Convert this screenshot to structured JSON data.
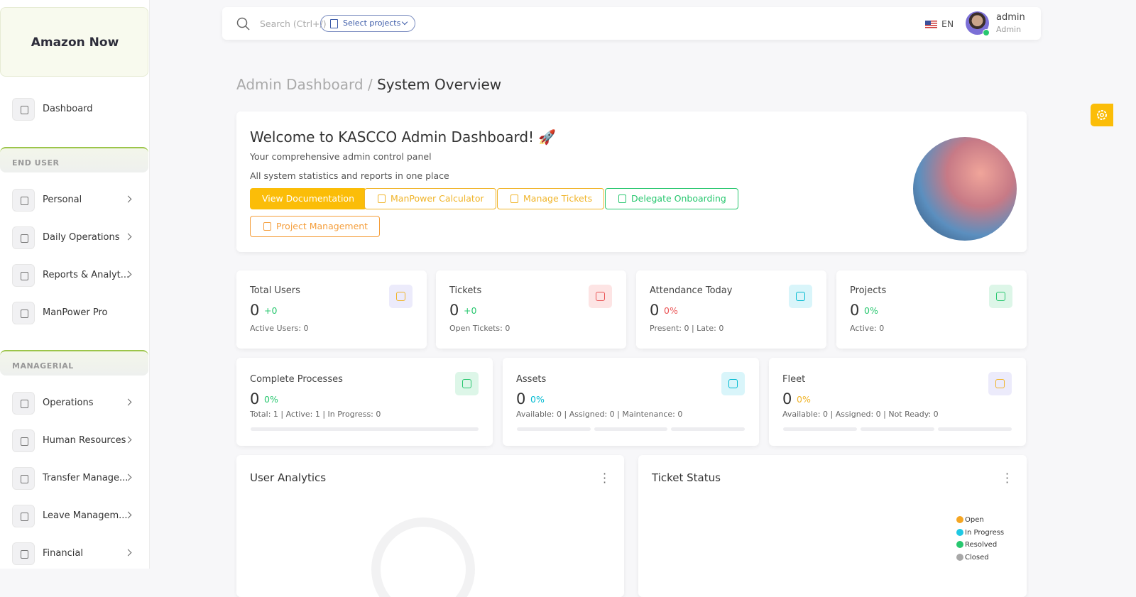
{
  "sidebar": {
    "brand": "Amazon Now",
    "items": [
      {
        "label": "Dashboard"
      }
    ],
    "sections": [
      {
        "title": "END USER",
        "items": [
          {
            "label": "Personal",
            "has_submenu": true
          },
          {
            "label": "Daily Operations",
            "has_submenu": true
          },
          {
            "label": "Reports & Analyt...",
            "has_submenu": true
          },
          {
            "label": "ManPower Pro",
            "has_submenu": false
          }
        ]
      },
      {
        "title": "MANAGERIAL",
        "items": [
          {
            "label": "Operations",
            "has_submenu": true
          },
          {
            "label": "Human Resources",
            "has_submenu": true
          },
          {
            "label": "Transfer Manage...",
            "has_submenu": true
          },
          {
            "label": "Leave Managem...",
            "has_submenu": true
          },
          {
            "label": "Financial",
            "has_submenu": true
          }
        ]
      }
    ]
  },
  "topbar": {
    "search_placeholder": "Search (Ctrl+/)",
    "project_select": "Select projects",
    "language": "EN",
    "user": {
      "name": "admin",
      "role": "Admin"
    }
  },
  "breadcrumb": {
    "parent": "Admin Dashboard /",
    "current": "System Overview"
  },
  "welcome": {
    "title": "Welcome to KASCCO Admin Dashboard! 🚀",
    "lines": [
      "Your comprehensive admin control panel",
      "All system statistics and reports in one place"
    ],
    "buttons": [
      {
        "label": "View Documentation",
        "style": "filled",
        "color": "#fbbd08"
      },
      {
        "label": "ManPower Calculator",
        "style": "outline",
        "color": "#f0b429"
      },
      {
        "label": "Manage Tickets",
        "style": "outline",
        "color": "#f0b429"
      },
      {
        "label": "Delegate Onboarding",
        "style": "outline",
        "color": "#28c76f"
      },
      {
        "label": "Project Management",
        "style": "outline",
        "color": "#f59e3b"
      }
    ]
  },
  "stats": [
    {
      "label": "Total Users",
      "value": 0,
      "change": "+0",
      "change_color": "#28c76f",
      "icon_bg": "#ecebfb",
      "icon_color": "#f0b429",
      "detail": "Active Users: 0"
    },
    {
      "label": "Tickets",
      "value": 0,
      "change": "+0",
      "change_color": "#28c76f",
      "icon_bg": "#fde4e4",
      "icon_color": "#ea5455",
      "detail": "Open Tickets: 0"
    },
    {
      "label": "Attendance Today",
      "value": 0,
      "change": "0%",
      "change_color": "#ea5455",
      "icon_bg": "#d9f5fa",
      "icon_color": "#00bad1",
      "detail": "Present: 0 | Late: 0"
    },
    {
      "label": "Projects",
      "value": 0,
      "change": "0%",
      "change_color": "#28c76f",
      "icon_bg": "#ddf6e8",
      "icon_color": "#28c76f",
      "detail": "Active: 0"
    },
    {
      "label": "Complete Processes",
      "value": 0,
      "change": "0%",
      "change_color": "#28c76f",
      "icon_bg": "#ddf6e8",
      "icon_color": "#28c76f",
      "detail": "Total: 1 | Active: 1 | In Progress: 0"
    },
    {
      "label": "Assets",
      "value": 0,
      "change": "0%",
      "change_color": "#00bad1",
      "icon_bg": "#d9f5fa",
      "icon_color": "#00bad1",
      "detail": "Available: 0 | Assigned: 0 | Maintenance: 0"
    },
    {
      "label": "Fleet",
      "value": 0,
      "change": "0%",
      "change_color": "#f0b429",
      "icon_bg": "#ecebfb",
      "icon_color": "#f0b429",
      "detail": "Available: 0 | Assigned: 0 | Not Ready: 0"
    }
  ],
  "panels": [
    {
      "title": "User Analytics"
    },
    {
      "title": "Ticket Status",
      "legend": [
        {
          "label": "Open",
          "color": "#f5a623"
        },
        {
          "label": "In Progress",
          "color": "#1fc8e3"
        },
        {
          "label": "Resolved",
          "color": "#28c76f"
        },
        {
          "label": "Closed",
          "color": "#a8a8a8"
        }
      ]
    }
  ]
}
